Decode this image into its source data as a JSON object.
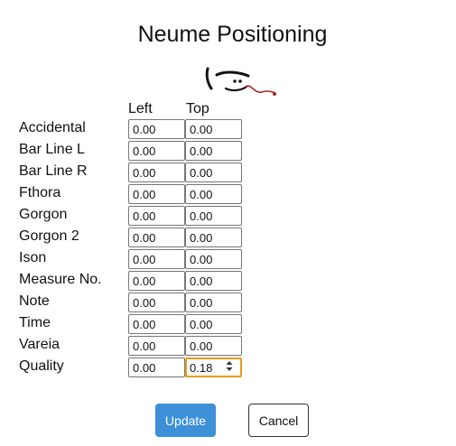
{
  "dialog": {
    "title": "Neume Positioning",
    "columns": {
      "left": "Left",
      "top": "Top"
    },
    "rows": [
      {
        "label": "Accidental",
        "left": "0.00",
        "top": "0.00"
      },
      {
        "label": "Bar Line L",
        "left": "0.00",
        "top": "0.00"
      },
      {
        "label": "Bar Line R",
        "left": "0.00",
        "top": "0.00"
      },
      {
        "label": "Fthora",
        "left": "0.00",
        "top": "0.00"
      },
      {
        "label": "Gorgon",
        "left": "0.00",
        "top": "0.00"
      },
      {
        "label": "Gorgon 2",
        "left": "0.00",
        "top": "0.00"
      },
      {
        "label": "Ison",
        "left": "0.00",
        "top": "0.00"
      },
      {
        "label": "Measure No.",
        "left": "0.00",
        "top": "0.00"
      },
      {
        "label": "Note",
        "left": "0.00",
        "top": "0.00"
      },
      {
        "label": "Time",
        "left": "0.00",
        "top": "0.00"
      },
      {
        "label": "Vareia",
        "left": "0.00",
        "top": "0.00"
      },
      {
        "label": "Quality",
        "left": "0.00",
        "top": "0.18"
      }
    ],
    "focused_field": "Quality.top",
    "buttons": {
      "update": "Update",
      "cancel": "Cancel"
    }
  },
  "colors": {
    "update_button": "#3d8fd8",
    "focus_ring": "#e89b1a",
    "neume_accent": "#b22222"
  },
  "icons": {
    "preview": "neume-glyph-icon",
    "stepper": "spinner-arrows-icon"
  }
}
